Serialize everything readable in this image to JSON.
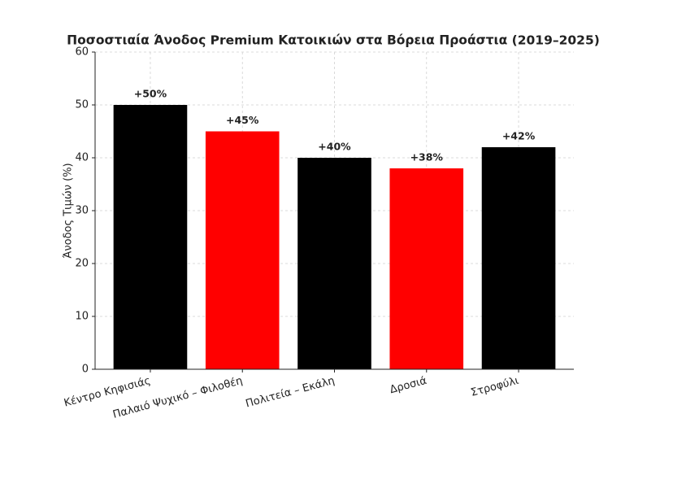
{
  "chart_data": {
    "type": "bar",
    "title": "Ποσοστιαία Άνοδος Premium Κατοικιών στα Βόρεια Προάστια (2019–2025)",
    "ylabel": "Άνοδος Τιμών (%)",
    "categories": [
      "Κέντρο Κηφισιάς",
      "Παλαιό Ψυχικό – Φιλοθέη",
      "Πολιτεία – Εκάλη",
      "Δροσιά",
      "Στροφύλι"
    ],
    "values": [
      50,
      45,
      40,
      38,
      42
    ],
    "value_labels": [
      "+50%",
      "+45%",
      "+40%",
      "+38%",
      "+42%"
    ],
    "colors": [
      "#000000",
      "#ff0000",
      "#000000",
      "#ff0000",
      "#000000"
    ],
    "ylim": [
      0,
      60
    ],
    "yticks": [
      0,
      10,
      20,
      30,
      40,
      50,
      60
    ],
    "grid": true
  }
}
